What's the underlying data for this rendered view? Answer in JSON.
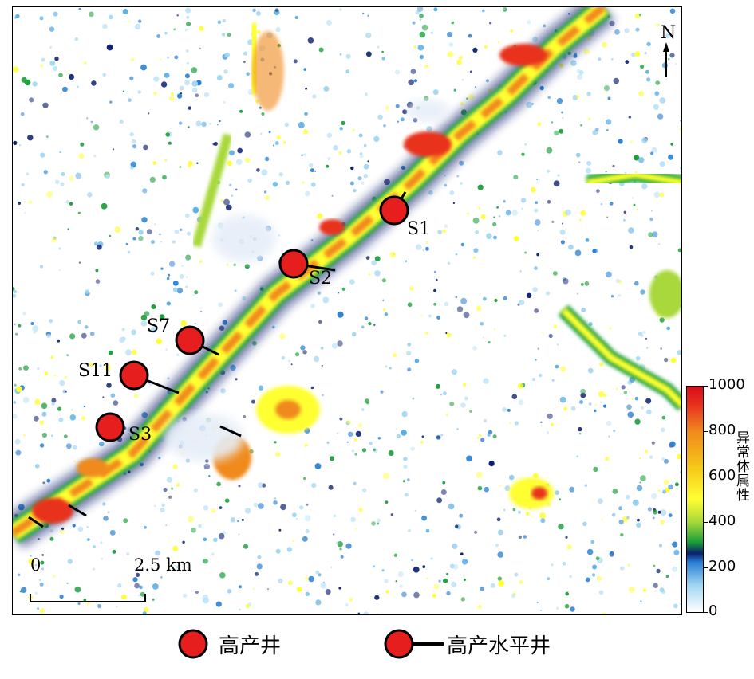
{
  "map": {
    "wells": [
      {
        "id": "S1",
        "type": "horizontal"
      },
      {
        "id": "S2",
        "type": "horizontal"
      },
      {
        "id": "S7",
        "type": "horizontal"
      },
      {
        "id": "S11",
        "type": "horizontal"
      },
      {
        "id": "S3",
        "type": "vertical"
      }
    ],
    "north_label": "N",
    "scale": {
      "start": "0",
      "end": "2.5 km"
    }
  },
  "colorbar": {
    "title": "异常体属性",
    "ticks": [
      "1000",
      "800",
      "600",
      "400",
      "200",
      "0"
    ],
    "colors": [
      "#ffffff",
      "#2a7fd4",
      "#0b1f6e",
      "#1a9e3a",
      "#ffff33",
      "#f08a1e",
      "#d60f18"
    ]
  },
  "legend": {
    "items": [
      {
        "label": "高产井"
      },
      {
        "label": "高产水平井"
      }
    ]
  },
  "colors": {
    "well_fill": "#e61e1e",
    "well_stroke": "#000000"
  }
}
